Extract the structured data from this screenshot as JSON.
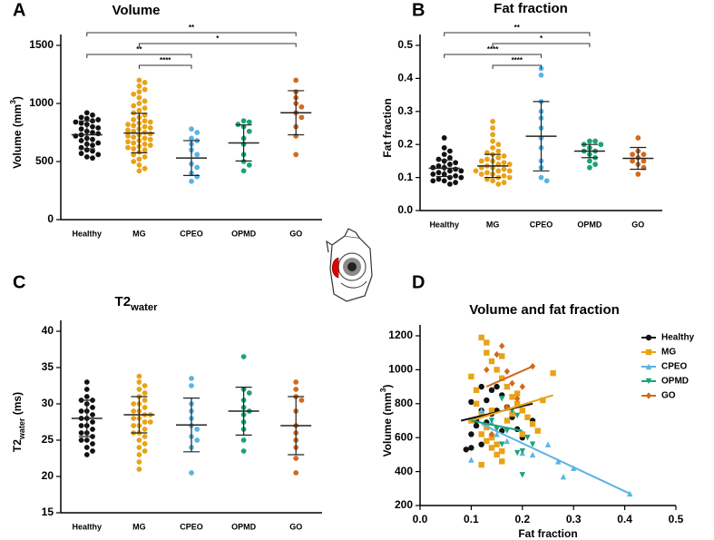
{
  "chart_data": [
    {
      "type": "strip",
      "label": "A",
      "title": "Volume",
      "ylabel": "Volume (mm",
      "ylabel_sup": "3",
      "ylabel_end": ")",
      "categories": [
        "Healthy",
        "MG",
        "CPEO",
        "OPMD",
        "GO"
      ],
      "ylim": [
        0,
        1500
      ],
      "yticks": [
        0,
        500,
        1000,
        1500
      ],
      "groups": [
        {
          "color": "#111111",
          "mean": 730,
          "sd": 120,
          "values": [
            920,
            900,
            880,
            870,
            860,
            850,
            840,
            830,
            820,
            800,
            790,
            780,
            760,
            750,
            740,
            730,
            720,
            700,
            690,
            680,
            660,
            650,
            640,
            620,
            600,
            590,
            570,
            560,
            540,
            530
          ]
        },
        {
          "color": "#e8a317",
          "mean": 745,
          "sd": 170,
          "values": [
            1200,
            1180,
            1150,
            1120,
            1100,
            1080,
            1050,
            1020,
            1000,
            980,
            960,
            940,
            920,
            900,
            880,
            860,
            850,
            840,
            830,
            820,
            810,
            800,
            790,
            780,
            770,
            760,
            750,
            740,
            730,
            720,
            710,
            700,
            690,
            680,
            670,
            660,
            650,
            640,
            630,
            620,
            610,
            600,
            580,
            560,
            540,
            520,
            500,
            470,
            440,
            420
          ]
        },
        {
          "color": "#5ab4e5",
          "mean": 530,
          "sd": 150,
          "values": [
            780,
            750,
            700,
            680,
            650,
            600,
            560,
            480,
            450,
            400,
            370,
            330
          ]
        },
        {
          "color": "#1aa37a",
          "mean": 660,
          "sd": 155,
          "values": [
            850,
            840,
            820,
            800,
            760,
            700,
            650,
            560,
            500,
            470,
            420
          ]
        },
        {
          "color": "#d2691e",
          "mean": 920,
          "sd": 190,
          "values": [
            1200,
            1100,
            1050,
            1000,
            970,
            920,
            880,
            800,
            720,
            560
          ]
        }
      ],
      "brackets": [
        {
          "from": "Healthy",
          "to": "GO",
          "label": "**"
        },
        {
          "from": "MG",
          "to": "GO",
          "label": "*"
        },
        {
          "from": "Healthy",
          "to": "CPEO",
          "label": "**"
        },
        {
          "from": "MG",
          "to": "CPEO",
          "label": "****"
        }
      ]
    },
    {
      "type": "strip",
      "label": "B",
      "title": "Fat fraction",
      "ylabel": "Fat fraction",
      "categories": [
        "Healthy",
        "MG",
        "CPEO",
        "OPMD",
        "GO"
      ],
      "ylim": [
        0,
        0.5
      ],
      "yticks": [
        {
          "value": 0,
          "label": "0.0"
        },
        0.1,
        0.2,
        0.3,
        0.4,
        0.5
      ],
      "groups": [
        {
          "color": "#111111",
          "mean": 0.128,
          "sd": 0.025,
          "values": [
            0.22,
            0.19,
            0.18,
            0.17,
            0.16,
            0.155,
            0.15,
            0.145,
            0.14,
            0.135,
            0.13,
            0.13,
            0.125,
            0.12,
            0.12,
            0.115,
            0.11,
            0.11,
            0.105,
            0.1,
            0.1,
            0.095,
            0.09,
            0.09,
            0.085,
            0.08
          ]
        },
        {
          "color": "#e8a317",
          "mean": 0.135,
          "sd": 0.035,
          "values": [
            0.27,
            0.25,
            0.23,
            0.21,
            0.2,
            0.19,
            0.18,
            0.175,
            0.17,
            0.165,
            0.16,
            0.155,
            0.15,
            0.15,
            0.145,
            0.14,
            0.14,
            0.135,
            0.13,
            0.13,
            0.125,
            0.12,
            0.12,
            0.12,
            0.115,
            0.11,
            0.11,
            0.105,
            0.1,
            0.1,
            0.095,
            0.09,
            0.085,
            0.08
          ]
        },
        {
          "color": "#5ab4e5",
          "mean": 0.225,
          "sd": 0.105,
          "values": [
            0.43,
            0.41,
            0.33,
            0.3,
            0.28,
            0.25,
            0.22,
            0.19,
            0.15,
            0.13,
            0.1,
            0.09
          ]
        },
        {
          "color": "#1aa37a",
          "mean": 0.18,
          "sd": 0.02,
          "values": [
            0.21,
            0.21,
            0.2,
            0.2,
            0.19,
            0.18,
            0.18,
            0.17,
            0.16,
            0.15,
            0.14,
            0.13
          ]
        },
        {
          "color": "#d2691e",
          "mean": 0.158,
          "sd": 0.033,
          "values": [
            0.22,
            0.18,
            0.17,
            0.17,
            0.16,
            0.15,
            0.15,
            0.14,
            0.13,
            0.11
          ]
        }
      ],
      "brackets": [
        {
          "from": "Healthy",
          "to": "OPMD",
          "label": "**"
        },
        {
          "from": "MG",
          "to": "OPMD",
          "label": "*"
        },
        {
          "from": "Healthy",
          "to": "CPEO",
          "label": "****"
        },
        {
          "from": "MG",
          "to": "CPEO",
          "label": "****"
        }
      ]
    },
    {
      "type": "strip",
      "label": "C",
      "title": "T2",
      "title_sub": "water",
      "ylabel": "T2",
      "ylabel_sub": "water",
      "ylabel_end": " (ms)",
      "categories": [
        "Healthy",
        "MG",
        "CPEO",
        "OPMD",
        "GO"
      ],
      "ylim": [
        15,
        40
      ],
      "yticks": [
        15,
        20,
        25,
        30,
        35,
        40
      ],
      "groups": [
        {
          "color": "#111111",
          "mean": 28,
          "sd": 2.5,
          "values": [
            33,
            32,
            31,
            30.5,
            30.5,
            30,
            29.5,
            29,
            29,
            28.5,
            28,
            28,
            27.5,
            27,
            27,
            26.5,
            26,
            26,
            25.5,
            25,
            25,
            24.5,
            24,
            23.5,
            23
          ]
        },
        {
          "color": "#e8a317",
          "mean": 28.5,
          "sd": 2.5,
          "values": [
            33.8,
            33,
            32.5,
            32,
            31.5,
            31,
            30.5,
            30,
            30,
            29.5,
            29,
            29,
            28.5,
            28.5,
            28,
            28,
            27.5,
            27.5,
            27,
            27,
            26.5,
            26,
            26,
            25.5,
            25,
            24.5,
            24,
            23.5,
            23,
            22,
            21
          ]
        },
        {
          "color": "#5ab4e5",
          "mean": 27.1,
          "sd": 3.7,
          "values": [
            33.5,
            32.5,
            30,
            29,
            28,
            27,
            26.5,
            25.5,
            25,
            24,
            20.5
          ]
        },
        {
          "color": "#1aa37a",
          "mean": 29,
          "sd": 3.3,
          "values": [
            36.5,
            32,
            31.5,
            30.5,
            29.5,
            29,
            28.5,
            27.5,
            26.5,
            25,
            23.5
          ]
        },
        {
          "color": "#d2691e",
          "mean": 27,
          "sd": 4,
          "values": [
            33,
            32,
            31,
            30.5,
            29,
            27,
            26,
            25,
            24,
            22.5,
            20.5
          ]
        }
      ],
      "brackets": []
    },
    {
      "type": "scatter",
      "label": "D",
      "title": "Volume and fat fraction",
      "xlabel": "Fat fraction",
      "ylabel": "Volume (mm",
      "ylabel_sup": "3",
      "ylabel_end": ")",
      "xlim": [
        0,
        0.5
      ],
      "xticks": [
        {
          "value": 0,
          "label": "0.0"
        },
        0.1,
        0.2,
        0.3,
        0.4,
        0.5
      ],
      "ylim": [
        200,
        1200
      ],
      "yticks": [
        200,
        400,
        600,
        800,
        1000,
        1200
      ],
      "legend": "right",
      "series": [
        {
          "name": "Healthy",
          "color": "#111111",
          "marker": "circle",
          "x": [
            0.09,
            0.1,
            0.11,
            0.12,
            0.13,
            0.14,
            0.15,
            0.16,
            0.17,
            0.18,
            0.19,
            0.2,
            0.12,
            0.13,
            0.14,
            0.1,
            0.11,
            0.15,
            0.16,
            0.22,
            0.1,
            0.12
          ],
          "y": [
            530,
            620,
            700,
            760,
            820,
            880,
            900,
            850,
            780,
            720,
            650,
            600,
            560,
            690,
            740,
            810,
            670,
            760,
            640,
            700,
            540,
            900
          ],
          "fit_x": [
            0.08,
            0.22
          ],
          "fit_y": [
            700,
            800
          ]
        },
        {
          "name": "MG",
          "color": "#e8a317",
          "marker": "square",
          "x": [
            0.1,
            0.11,
            0.12,
            0.13,
            0.14,
            0.15,
            0.16,
            0.17,
            0.18,
            0.19,
            0.2,
            0.21,
            0.22,
            0.23,
            0.26,
            0.12,
            0.13,
            0.14,
            0.15,
            0.16,
            0.17,
            0.11,
            0.12,
            0.13,
            0.14,
            0.15,
            0.16,
            0.18,
            0.2,
            0.24,
            0.1,
            0.12,
            0.14,
            0.16,
            0.19,
            0.13
          ],
          "y": [
            960,
            880,
            1190,
            1100,
            1050,
            1000,
            950,
            900,
            840,
            800,
            760,
            720,
            680,
            640,
            980,
            620,
            580,
            540,
            500,
            460,
            700,
            800,
            740,
            660,
            600,
            560,
            520,
            740,
            620,
            820,
            700,
            440,
            760,
            1080,
            860,
            1160
          ],
          "fit_x": [
            0.1,
            0.26
          ],
          "fit_y": [
            700,
            850
          ]
        },
        {
          "name": "CPEO",
          "color": "#5ab4e5",
          "marker": "triangle-up",
          "x": [
            0.12,
            0.1,
            0.3,
            0.25,
            0.41,
            0.27,
            0.2,
            0.15,
            0.17,
            0.14,
            0.28,
            0.22
          ],
          "y": [
            760,
            470,
            420,
            560,
            270,
            460,
            510,
            620,
            580,
            690,
            370,
            500
          ],
          "fit_x": [
            0.12,
            0.41
          ],
          "fit_y": [
            680,
            270
          ]
        },
        {
          "name": "OPMD",
          "color": "#1aa37a",
          "marker": "triangle-down",
          "x": [
            0.15,
            0.16,
            0.19,
            0.2,
            0.18,
            0.19,
            0.17,
            0.2,
            0.22,
            0.21,
            0.14,
            0.16
          ],
          "y": [
            650,
            560,
            510,
            520,
            760,
            730,
            640,
            380,
            560,
            600,
            700,
            830
          ],
          "fit_x": [
            0.1,
            0.2
          ],
          "fit_y": [
            700,
            640
          ]
        },
        {
          "name": "GO",
          "color": "#d2691e",
          "marker": "diamond",
          "x": [
            0.13,
            0.15,
            0.16,
            0.17,
            0.18,
            0.19,
            0.2,
            0.22,
            0.17,
            0.14
          ],
          "y": [
            1000,
            1090,
            1140,
            990,
            920,
            830,
            900,
            1020,
            780,
            620
          ],
          "fit_x": [
            0.13,
            0.22
          ],
          "fit_y": [
            900,
            1020
          ]
        }
      ]
    }
  ]
}
